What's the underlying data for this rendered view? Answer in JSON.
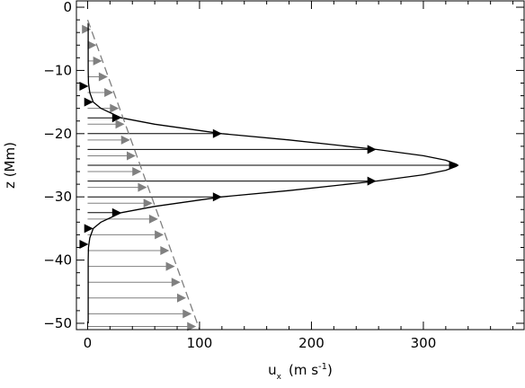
{
  "chart_data": {
    "type": "line",
    "xlabel": "u",
    "xlabel_subscript": "x",
    "xlabel_units": "(m s",
    "xlabel_units_sup": "-1",
    "xlabel_units_close": ")",
    "ylabel": "z (Mm)",
    "xlim": [
      -10,
      390
    ],
    "ylim": [
      -51,
      1
    ],
    "x_ticks": [
      0,
      100,
      200,
      300
    ],
    "y_ticks": [
      0,
      -10,
      -20,
      -30,
      -40,
      -50
    ],
    "grid": false,
    "series": [
      {
        "style": "solid",
        "color": "#000000",
        "x": [
          0.5,
          0.5,
          0.8,
          2,
          5,
          12,
          30,
          60,
          120,
          180,
          258,
          300,
          320,
          329,
          331,
          329,
          320,
          300,
          258,
          180,
          120,
          60,
          30,
          12,
          5,
          2,
          0.8,
          0.5,
          0.5
        ],
        "y": [
          -2.5,
          -10,
          -12,
          -13.5,
          -15,
          -16,
          -17.5,
          -18.5,
          -20,
          -21,
          -22.5,
          -23.5,
          -24.2,
          -24.8,
          -25,
          -25.2,
          -25.8,
          -26.5,
          -27.5,
          -29,
          -30,
          -31.5,
          -32.5,
          -34,
          -35,
          -36.5,
          -38,
          -40,
          -50
        ]
      },
      {
        "style": "dashed",
        "color": "#808080",
        "x": [
          0,
          100
        ],
        "y": [
          -2,
          -51
        ]
      }
    ],
    "arrows": [
      {
        "color": "#000000",
        "z": -12.5,
        "u": 0.8
      },
      {
        "color": "#000000",
        "z": -15,
        "u": 5
      },
      {
        "color": "#000000",
        "z": -17.5,
        "u": 30
      },
      {
        "color": "#000000",
        "z": -20,
        "u": 120
      },
      {
        "color": "#000000",
        "z": -22.5,
        "u": 258
      },
      {
        "color": "#000000",
        "z": -25,
        "u": 331
      },
      {
        "color": "#000000",
        "z": -27.5,
        "u": 258
      },
      {
        "color": "#000000",
        "z": -30,
        "u": 120
      },
      {
        "color": "#000000",
        "z": -32.5,
        "u": 30
      },
      {
        "color": "#000000",
        "z": -35,
        "u": 5
      },
      {
        "color": "#000000",
        "z": -37.5,
        "u": 0.8
      },
      {
        "color": "#808080",
        "z": -3.5,
        "u": 3
      },
      {
        "color": "#808080",
        "z": -6,
        "u": 8
      },
      {
        "color": "#808080",
        "z": -8.5,
        "u": 13
      },
      {
        "color": "#808080",
        "z": -11,
        "u": 18
      },
      {
        "color": "#808080",
        "z": -13.5,
        "u": 23
      },
      {
        "color": "#808080",
        "z": -16,
        "u": 28
      },
      {
        "color": "#808080",
        "z": -18.5,
        "u": 33
      },
      {
        "color": "#808080",
        "z": -21,
        "u": 38
      },
      {
        "color": "#808080",
        "z": -23.5,
        "u": 43
      },
      {
        "color": "#808080",
        "z": -26,
        "u": 48
      },
      {
        "color": "#808080",
        "z": -28.5,
        "u": 53
      },
      {
        "color": "#808080",
        "z": -31,
        "u": 58
      },
      {
        "color": "#808080",
        "z": -33.5,
        "u": 63
      },
      {
        "color": "#808080",
        "z": -36,
        "u": 68
      },
      {
        "color": "#808080",
        "z": -38.5,
        "u": 73
      },
      {
        "color": "#808080",
        "z": -41,
        "u": 78
      },
      {
        "color": "#808080",
        "z": -43.5,
        "u": 83
      },
      {
        "color": "#808080",
        "z": -46,
        "u": 88
      },
      {
        "color": "#808080",
        "z": -48.5,
        "u": 93
      },
      {
        "color": "#808080",
        "z": -50.5,
        "u": 97
      }
    ]
  }
}
